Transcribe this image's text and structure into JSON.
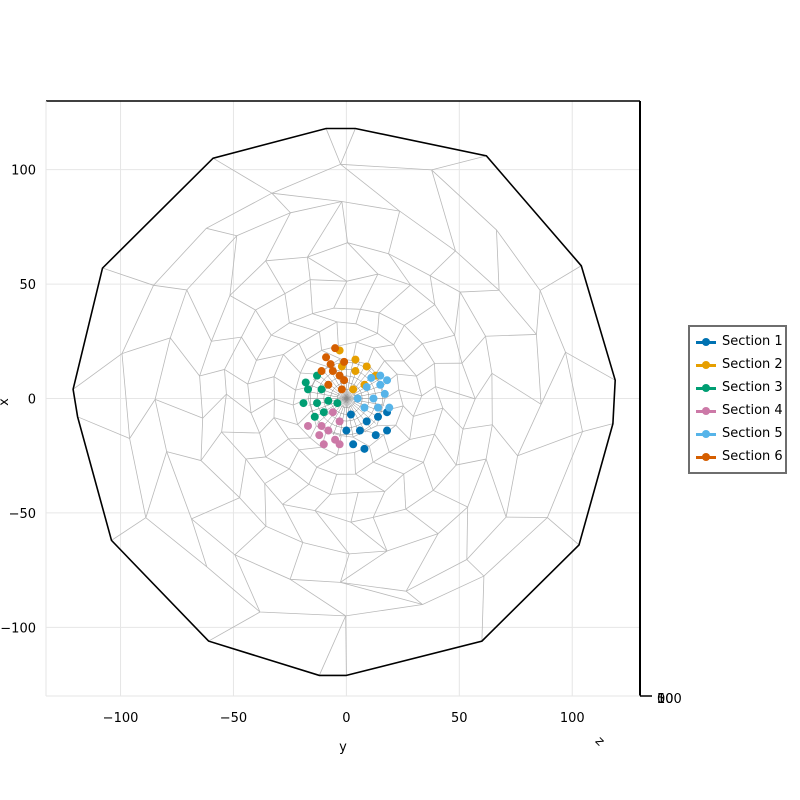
{
  "chart_data": {
    "type": "scatter",
    "title": "",
    "xlabel": "y",
    "ylabel": "x",
    "zlabel": "z",
    "xlim": [
      -133,
      130
    ],
    "ylim": [
      130,
      -130
    ],
    "y_inverted": true,
    "x_ticks": [
      "−100",
      "−50",
      "0",
      "50",
      "100"
    ],
    "x_tick_values": [
      -100,
      -50,
      0,
      50,
      100
    ],
    "y_ticks": [
      "−100",
      "−50",
      "0",
      "50",
      "100"
    ],
    "y_tick_values": [
      -100,
      -50,
      0,
      50,
      100
    ],
    "z_ticks": [
      "0",
      "50",
      "100"
    ],
    "grid": true,
    "legend_position": "right",
    "boundary": [
      [
        0,
        -121
      ],
      [
        60,
        -106
      ],
      [
        103,
        -64
      ],
      [
        118,
        -11
      ],
      [
        119,
        8
      ],
      [
        104,
        58
      ],
      [
        62,
        106
      ],
      [
        4,
        118
      ],
      [
        -9,
        118
      ],
      [
        -59,
        105
      ],
      [
        -108,
        57
      ],
      [
        -121,
        4
      ],
      [
        -119,
        -8
      ],
      [
        -104,
        -62
      ],
      [
        -61,
        -106
      ],
      [
        -12,
        -121
      ]
    ],
    "mesh_rings": [
      {
        "r": 17,
        "n": 18
      },
      {
        "r": 24,
        "n": 20
      },
      {
        "r": 32,
        "n": 22
      },
      {
        "r": 42,
        "n": 24
      },
      {
        "r": 54,
        "n": 24
      },
      {
        "r": 68,
        "n": 22
      },
      {
        "r": 84,
        "n": 20
      },
      {
        "r": 101,
        "n": 18
      }
    ],
    "series": [
      {
        "name": "Section 1",
        "color": "#0072b2",
        "points": [
          [
            3,
            -20
          ],
          [
            8,
            -22
          ],
          [
            13,
            -16
          ],
          [
            18,
            -14
          ],
          [
            0,
            -14
          ],
          [
            6,
            -14
          ],
          [
            9,
            -10
          ],
          [
            14,
            -8
          ],
          [
            2,
            -7
          ],
          [
            18,
            -6
          ]
        ]
      },
      {
        "name": "Section 2",
        "color": "#e69f00",
        "points": [
          [
            3,
            4
          ],
          [
            8,
            6
          ],
          [
            13,
            10
          ],
          [
            4,
            12
          ],
          [
            9,
            14
          ],
          [
            -2,
            14
          ],
          [
            4,
            17
          ],
          [
            -3,
            21
          ]
        ]
      },
      {
        "name": "Section 3",
        "color": "#009e73",
        "points": [
          [
            -14,
            -8
          ],
          [
            -10,
            -6
          ],
          [
            -4,
            -2
          ],
          [
            -19,
            -2
          ],
          [
            -13,
            -2
          ],
          [
            -8,
            -1
          ],
          [
            -17,
            4
          ],
          [
            -11,
            4
          ],
          [
            -18,
            7
          ],
          [
            -13,
            10
          ]
        ]
      },
      {
        "name": "Section 4",
        "color": "#cc79a7",
        "points": [
          [
            -10,
            -20
          ],
          [
            -3,
            -20
          ],
          [
            -12,
            -16
          ],
          [
            -5,
            -18
          ],
          [
            -8,
            -14
          ],
          [
            -17,
            -12
          ],
          [
            -11,
            -12
          ],
          [
            -3,
            -10
          ],
          [
            -6,
            -6
          ]
        ]
      },
      {
        "name": "Section 5",
        "color": "#56b4e9",
        "points": [
          [
            8,
            -4
          ],
          [
            14,
            -4
          ],
          [
            19,
            -4
          ],
          [
            5,
            0
          ],
          [
            12,
            0
          ],
          [
            17,
            2
          ],
          [
            9,
            5
          ],
          [
            15,
            6
          ],
          [
            18,
            8
          ],
          [
            11,
            9
          ],
          [
            15,
            10
          ]
        ]
      },
      {
        "name": "Section 6",
        "color": "#d55e00",
        "points": [
          [
            -2,
            4
          ],
          [
            -8,
            6
          ],
          [
            -1,
            8
          ],
          [
            -3,
            10
          ],
          [
            -11,
            12
          ],
          [
            -6,
            12
          ],
          [
            -7,
            15
          ],
          [
            -1,
            16
          ],
          [
            -9,
            18
          ],
          [
            -5,
            22
          ]
        ]
      }
    ]
  }
}
